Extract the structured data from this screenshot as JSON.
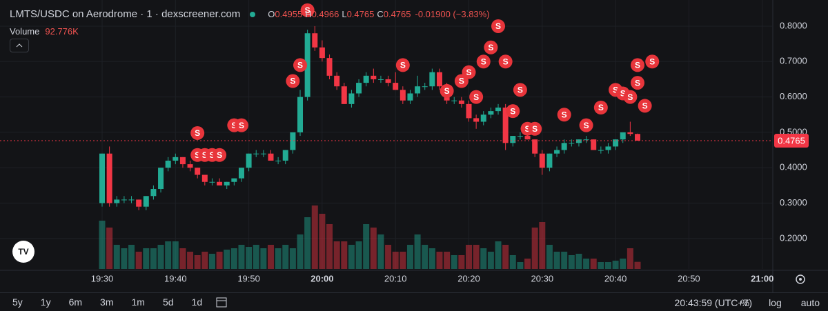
{
  "header": {
    "title": "LMTS/USDC on Aerodrome · 1 · dexscreener.com",
    "ohlc": [
      {
        "key": "O",
        "value": "0.4955"
      },
      {
        "key": "H",
        "value": "0.4966"
      },
      {
        "key": "L",
        "value": "0.4765"
      },
      {
        "key": "C",
        "value": "0.4765"
      }
    ],
    "change": "-0.01900 (−3.83%)",
    "volume_label": "Volume",
    "volume_value": "92.776K"
  },
  "chart_data": {
    "type": "candlestick",
    "up_color": "#22ab94",
    "down_color": "#f23645",
    "x": [
      "19:30",
      "19:31",
      "19:32",
      "19:33",
      "19:34",
      "19:35",
      "19:36",
      "19:37",
      "19:38",
      "19:39",
      "19:40",
      "19:41",
      "19:42",
      "19:43",
      "19:44",
      "19:45",
      "19:46",
      "19:47",
      "19:48",
      "19:49",
      "19:50",
      "19:51",
      "19:52",
      "19:53",
      "19:54",
      "19:55",
      "19:56",
      "19:57",
      "19:58",
      "19:59",
      "20:00",
      "20:01",
      "20:02",
      "20:03",
      "20:04",
      "20:05",
      "20:06",
      "20:07",
      "20:08",
      "20:09",
      "20:10",
      "20:11",
      "20:12",
      "20:13",
      "20:14",
      "20:15",
      "20:16",
      "20:17",
      "20:18",
      "20:19",
      "20:20",
      "20:21",
      "20:22",
      "20:23",
      "20:24",
      "20:25",
      "20:26",
      "20:27",
      "20:28",
      "20:29",
      "20:30",
      "20:31",
      "20:32",
      "20:33",
      "20:34",
      "20:35",
      "20:36",
      "20:37",
      "20:38",
      "20:39",
      "20:40",
      "20:41",
      "20:42",
      "20:43"
    ],
    "open": [
      0.3,
      0.44,
      0.3,
      0.31,
      0.31,
      0.31,
      0.29,
      0.32,
      0.34,
      0.4,
      0.42,
      0.43,
      0.41,
      0.4,
      0.38,
      0.36,
      0.36,
      0.35,
      0.36,
      0.37,
      0.4,
      0.44,
      0.44,
      0.44,
      0.42,
      0.42,
      0.45,
      0.5,
      0.6,
      0.78,
      0.74,
      0.71,
      0.66,
      0.63,
      0.58,
      0.61,
      0.64,
      0.66,
      0.65,
      0.65,
      0.64,
      0.62,
      0.59,
      0.61,
      0.63,
      0.63,
      0.67,
      0.63,
      0.59,
      0.59,
      0.58,
      0.54,
      0.53,
      0.55,
      0.56,
      0.57,
      0.47,
      0.49,
      0.49,
      0.48,
      0.44,
      0.4,
      0.44,
      0.45,
      0.47,
      0.47,
      0.48,
      0.48,
      0.45,
      0.45,
      0.46,
      0.48,
      0.5,
      0.4955
    ],
    "high": [
      0.44,
      0.46,
      0.32,
      0.32,
      0.32,
      0.31,
      0.32,
      0.35,
      0.4,
      0.43,
      0.44,
      0.43,
      0.42,
      0.4,
      0.38,
      0.37,
      0.37,
      0.36,
      0.37,
      0.4,
      0.44,
      0.45,
      0.45,
      0.45,
      0.43,
      0.45,
      0.5,
      0.62,
      0.79,
      0.8,
      0.76,
      0.72,
      0.67,
      0.64,
      0.62,
      0.65,
      0.67,
      0.68,
      0.66,
      0.66,
      0.67,
      0.63,
      0.62,
      0.66,
      0.64,
      0.68,
      0.68,
      0.64,
      0.6,
      0.6,
      0.59,
      0.55,
      0.56,
      0.57,
      0.58,
      0.58,
      0.49,
      0.5,
      0.5,
      0.48,
      0.45,
      0.44,
      0.46,
      0.48,
      0.48,
      0.48,
      0.49,
      0.48,
      0.46,
      0.47,
      0.48,
      0.5,
      0.53,
      0.4966
    ],
    "low": [
      0.29,
      0.29,
      0.29,
      0.3,
      0.3,
      0.28,
      0.28,
      0.31,
      0.33,
      0.39,
      0.41,
      0.4,
      0.39,
      0.37,
      0.35,
      0.35,
      0.35,
      0.34,
      0.35,
      0.36,
      0.39,
      0.43,
      0.43,
      0.42,
      0.41,
      0.41,
      0.44,
      0.49,
      0.59,
      0.73,
      0.7,
      0.65,
      0.62,
      0.58,
      0.57,
      0.6,
      0.63,
      0.64,
      0.64,
      0.63,
      0.62,
      0.58,
      0.58,
      0.6,
      0.62,
      0.62,
      0.62,
      0.58,
      0.58,
      0.57,
      0.53,
      0.51,
      0.52,
      0.54,
      0.55,
      0.45,
      0.46,
      0.48,
      0.48,
      0.43,
      0.38,
      0.39,
      0.43,
      0.44,
      0.46,
      0.46,
      0.47,
      0.45,
      0.44,
      0.44,
      0.45,
      0.47,
      0.49,
      0.4765
    ],
    "close": [
      0.44,
      0.3,
      0.31,
      0.31,
      0.31,
      0.29,
      0.32,
      0.34,
      0.4,
      0.42,
      0.43,
      0.41,
      0.4,
      0.38,
      0.36,
      0.36,
      0.35,
      0.36,
      0.37,
      0.4,
      0.44,
      0.44,
      0.44,
      0.42,
      0.42,
      0.45,
      0.5,
      0.6,
      0.78,
      0.74,
      0.71,
      0.66,
      0.63,
      0.58,
      0.61,
      0.64,
      0.66,
      0.65,
      0.65,
      0.64,
      0.62,
      0.59,
      0.61,
      0.63,
      0.63,
      0.67,
      0.63,
      0.59,
      0.59,
      0.58,
      0.54,
      0.53,
      0.55,
      0.56,
      0.57,
      0.47,
      0.49,
      0.49,
      0.48,
      0.44,
      0.4,
      0.44,
      0.45,
      0.47,
      0.47,
      0.48,
      0.48,
      0.45,
      0.45,
      0.46,
      0.48,
      0.5,
      0.4955,
      0.4765
    ],
    "volume": [
      630000,
      540000,
      315000,
      270000,
      315000,
      225000,
      270000,
      270000,
      315000,
      360000,
      360000,
      270000,
      225000,
      180000,
      225000,
      198000,
      225000,
      252000,
      270000,
      315000,
      288000,
      315000,
      270000,
      315000,
      270000,
      315000,
      270000,
      450000,
      675000,
      828000,
      720000,
      585000,
      360000,
      360000,
      315000,
      360000,
      585000,
      540000,
      450000,
      315000,
      225000,
      225000,
      315000,
      450000,
      315000,
      270000,
      225000,
      225000,
      180000,
      180000,
      315000,
      315000,
      270000,
      225000,
      360000,
      315000,
      180000,
      90000,
      135000,
      540000,
      612000,
      315000,
      225000,
      225000,
      180000,
      198000,
      135000,
      135000,
      90000,
      90000,
      108000,
      135000,
      270000,
      92776
    ],
    "volume_ylim": [
      0,
      900000
    ],
    "ylim": [
      0.114,
      0.874
    ],
    "yticks": [
      {
        "value": 0.2,
        "label": "0.2000"
      },
      {
        "value": 0.3,
        "label": "0.3000"
      },
      {
        "value": 0.4,
        "label": "0.4000"
      },
      {
        "value": 0.5,
        "label": "0.5000"
      },
      {
        "value": 0.6,
        "label": "0.6000"
      },
      {
        "value": 0.7,
        "label": "0.7000"
      },
      {
        "value": 0.8,
        "label": "0.8000"
      }
    ],
    "xticks": [
      "19:30",
      "19:40",
      "19:50",
      "20:00",
      "20:10",
      "20:20",
      "20:30",
      "20:40",
      "20:50",
      "21:00"
    ],
    "last_price": {
      "value": 0.4765,
      "label": "0.4765"
    },
    "markers": [
      {
        "x": "19:43",
        "y": 0.498,
        "label": "S"
      },
      {
        "x": "19:43",
        "y": 0.436,
        "label": "S"
      },
      {
        "x": "19:44",
        "y": 0.436,
        "label": "S"
      },
      {
        "x": "19:45",
        "y": 0.436,
        "label": "S"
      },
      {
        "x": "19:46",
        "y": 0.436,
        "label": "S"
      },
      {
        "x": "19:48",
        "y": 0.52,
        "label": "S"
      },
      {
        "x": "19:49",
        "y": 0.52,
        "label": "S"
      },
      {
        "x": "19:56",
        "y": 0.645,
        "label": "S"
      },
      {
        "x": "19:57",
        "y": 0.69,
        "label": "S"
      },
      {
        "x": "19:58",
        "y": 0.845,
        "label": "S"
      },
      {
        "x": "20:11",
        "y": 0.69,
        "label": "S"
      },
      {
        "x": "20:17",
        "y": 0.617,
        "label": "S"
      },
      {
        "x": "20:19",
        "y": 0.645,
        "label": "S"
      },
      {
        "x": "20:20",
        "y": 0.67,
        "label": "S"
      },
      {
        "x": "20:21",
        "y": 0.6,
        "label": "S"
      },
      {
        "x": "20:22",
        "y": 0.7,
        "label": "S"
      },
      {
        "x": "20:23",
        "y": 0.74,
        "label": "S"
      },
      {
        "x": "20:24",
        "y": 0.8,
        "label": "S"
      },
      {
        "x": "20:25",
        "y": 0.7,
        "label": "S"
      },
      {
        "x": "20:26",
        "y": 0.56,
        "label": "S"
      },
      {
        "x": "20:27",
        "y": 0.62,
        "label": "S"
      },
      {
        "x": "20:28",
        "y": 0.51,
        "label": "S"
      },
      {
        "x": "20:29",
        "y": 0.51,
        "label": "S"
      },
      {
        "x": "20:33",
        "y": 0.55,
        "label": "S"
      },
      {
        "x": "20:36",
        "y": 0.52,
        "label": "S"
      },
      {
        "x": "20:38",
        "y": 0.57,
        "label": "S"
      },
      {
        "x": "20:40",
        "y": 0.62,
        "label": "S"
      },
      {
        "x": "20:41",
        "y": 0.61,
        "label": "S"
      },
      {
        "x": "20:42",
        "y": 0.6,
        "label": "S"
      },
      {
        "x": "20:43",
        "y": 0.69,
        "label": "S"
      },
      {
        "x": "20:43",
        "y": 0.64,
        "label": "S"
      },
      {
        "x": "20:44",
        "y": 0.575,
        "label": "S"
      },
      {
        "x": "20:45",
        "y": 0.7,
        "label": "S"
      }
    ]
  },
  "toolbar": {
    "ranges": [
      "5y",
      "1y",
      "6m",
      "3m",
      "1m",
      "5d",
      "1d"
    ],
    "clock": "20:43:59 (UTC+7)",
    "options": [
      "%",
      "log",
      "auto"
    ]
  }
}
